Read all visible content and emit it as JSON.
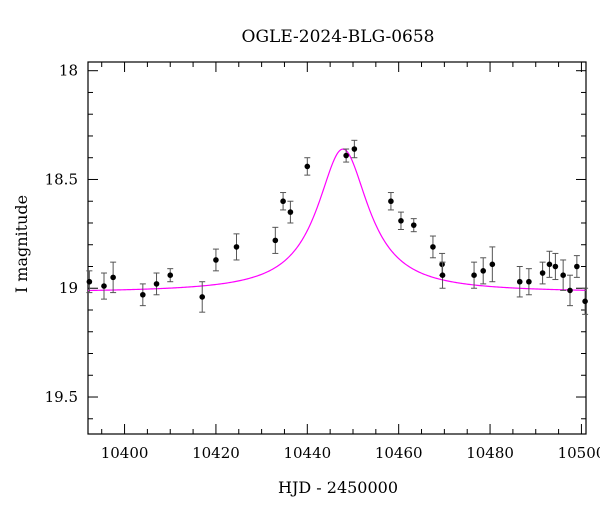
{
  "chart_data": {
    "type": "scatter",
    "title": "OGLE-2024-BLG-0658",
    "xlabel": "HJD - 2450000",
    "ylabel": "I magnitude",
    "xlim": [
      10392,
      10501
    ],
    "ylim": [
      19.67,
      17.96
    ],
    "y_inverted": true,
    "grid": false,
    "xticks": [
      10400,
      10420,
      10440,
      10460,
      10480,
      10500
    ],
    "xtick_labels": [
      "10400",
      "10420",
      "10440",
      "10460",
      "10480",
      "10500"
    ],
    "yticks": [
      18,
      18.5,
      19,
      19.5
    ],
    "ytick_labels": [
      "18",
      "18.5",
      "19",
      "19.5"
    ],
    "point_color": "#000000",
    "model_color": "#ff00ff",
    "series": [
      {
        "name": "",
        "points": [
          {
            "x": 10392.3,
            "y": 18.97,
            "err": 0.05
          },
          {
            "x": 10395.5,
            "y": 18.99,
            "err": 0.06
          },
          {
            "x": 10397.5,
            "y": 18.95,
            "err": 0.07
          },
          {
            "x": 10404.0,
            "y": 19.03,
            "err": 0.05
          },
          {
            "x": 10407.0,
            "y": 18.98,
            "err": 0.05
          },
          {
            "x": 10410.0,
            "y": 18.94,
            "err": 0.03
          },
          {
            "x": 10417.0,
            "y": 19.04,
            "err": 0.07
          },
          {
            "x": 10420.0,
            "y": 18.87,
            "err": 0.05
          },
          {
            "x": 10424.5,
            "y": 18.81,
            "err": 0.06
          },
          {
            "x": 10433.0,
            "y": 18.78,
            "err": 0.06
          },
          {
            "x": 10434.7,
            "y": 18.6,
            "err": 0.04
          },
          {
            "x": 10436.3,
            "y": 18.65,
            "err": 0.05
          },
          {
            "x": 10440.0,
            "y": 18.44,
            "err": 0.04
          },
          {
            "x": 10448.5,
            "y": 18.39,
            "err": 0.03
          },
          {
            "x": 10450.3,
            "y": 18.36,
            "err": 0.04
          },
          {
            "x": 10458.3,
            "y": 18.6,
            "err": 0.04
          },
          {
            "x": 10460.5,
            "y": 18.69,
            "err": 0.04
          },
          {
            "x": 10463.3,
            "y": 18.71,
            "err": 0.03
          },
          {
            "x": 10467.5,
            "y": 18.81,
            "err": 0.05
          },
          {
            "x": 10469.5,
            "y": 18.89,
            "err": 0.05
          },
          {
            "x": 10469.6,
            "y": 18.94,
            "err": 0.06
          },
          {
            "x": 10476.5,
            "y": 18.94,
            "err": 0.06
          },
          {
            "x": 10478.5,
            "y": 18.92,
            "err": 0.06
          },
          {
            "x": 10480.5,
            "y": 18.89,
            "err": 0.08
          },
          {
            "x": 10486.5,
            "y": 18.97,
            "err": 0.07
          },
          {
            "x": 10488.5,
            "y": 18.97,
            "err": 0.06
          },
          {
            "x": 10491.5,
            "y": 18.93,
            "err": 0.05
          },
          {
            "x": 10493.0,
            "y": 18.89,
            "err": 0.06
          },
          {
            "x": 10494.3,
            "y": 18.9,
            "err": 0.06
          },
          {
            "x": 10496.0,
            "y": 18.94,
            "err": 0.07
          },
          {
            "x": 10497.5,
            "y": 19.01,
            "err": 0.07
          },
          {
            "x": 10499.0,
            "y": 18.9,
            "err": 0.05
          },
          {
            "x": 10500.8,
            "y": 19.06,
            "err": 0.06
          }
        ]
      }
    ],
    "model": {
      "name": "",
      "t0": 10447.8,
      "peak_mag": 18.36,
      "base_mag": 19.02,
      "half_width": 6.8
    }
  }
}
